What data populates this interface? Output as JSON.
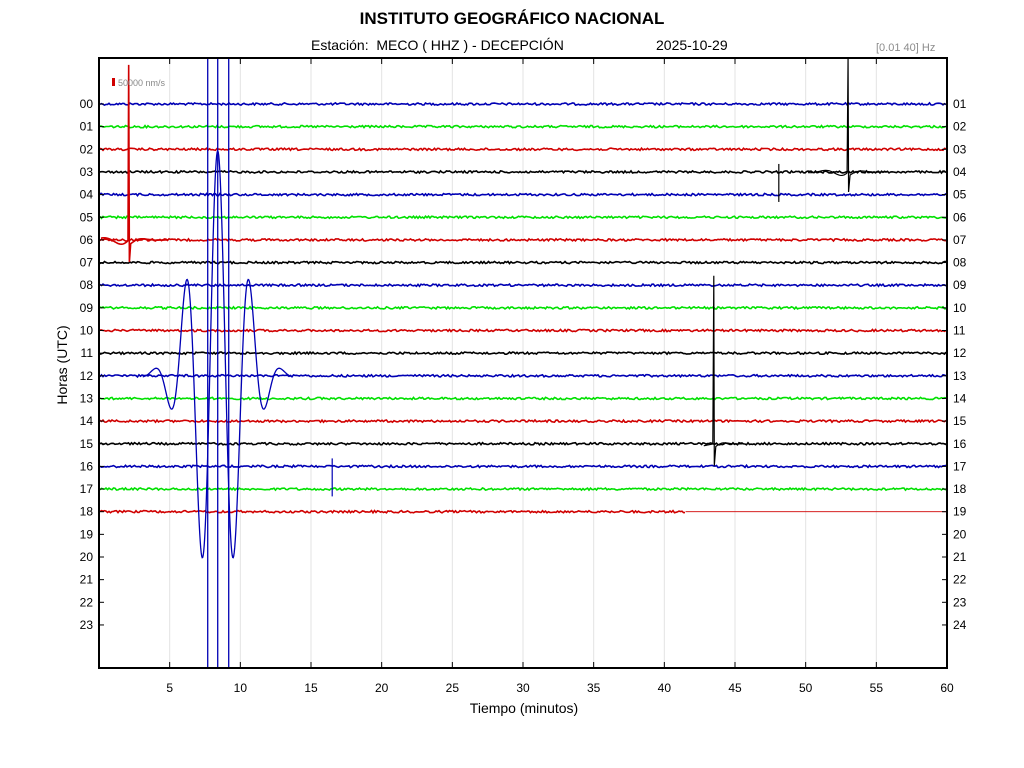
{
  "header": {
    "title": "INSTITUTO GEOGRÁFICO NACIONAL",
    "station": "Estación:  MECO ( HHZ ) - DECEPCIÓN",
    "date": "2025-10-29",
    "filter": "[0.01 40] Hz"
  },
  "chart_data": {
    "type": "line",
    "title": "INSTITUTO GEOGRÁFICO NACIONAL",
    "xlabel": "Tiempo (minutos)",
    "ylabel": "Horas (UTC)",
    "xlim": [
      0,
      60
    ],
    "x_ticks": [
      "5",
      "10",
      "15",
      "20",
      "25",
      "30",
      "35",
      "40",
      "45",
      "50",
      "55",
      "60"
    ],
    "y_ticks_left": [
      "00",
      "01",
      "02",
      "03",
      "04",
      "05",
      "06",
      "07",
      "08",
      "09",
      "10",
      "11",
      "12",
      "13",
      "14",
      "15",
      "16",
      "17",
      "18",
      "19",
      "20",
      "21",
      "22",
      "23"
    ],
    "y_ticks_right": [
      "01",
      "02",
      "03",
      "04",
      "05",
      "06",
      "07",
      "08",
      "09",
      "10",
      "11",
      "12",
      "13",
      "14",
      "15",
      "16",
      "17",
      "18",
      "19",
      "20",
      "21",
      "22",
      "23",
      "24"
    ],
    "scale_label": "50000 nm/s",
    "grid": true,
    "trace_colors": [
      "#0000b4",
      "#00e000",
      "#d00000",
      "#000000"
    ],
    "traces_recorded": 19,
    "last_trace_end_minute": 41.5,
    "events": [
      {
        "hour": "06",
        "minute": 2.1,
        "color": "#d00000"
      },
      {
        "hour": "12",
        "minute": 8.4,
        "color": "#0000b4"
      },
      {
        "hour": "03",
        "minute": 53.0,
        "color": "#000000"
      },
      {
        "hour": "15",
        "minute": 43.5,
        "color": "#000000"
      },
      {
        "hour": "03",
        "minute": 48.1,
        "color": "#000000"
      },
      {
        "hour": "16",
        "minute": 16.5,
        "color": "#0000b4"
      }
    ]
  }
}
